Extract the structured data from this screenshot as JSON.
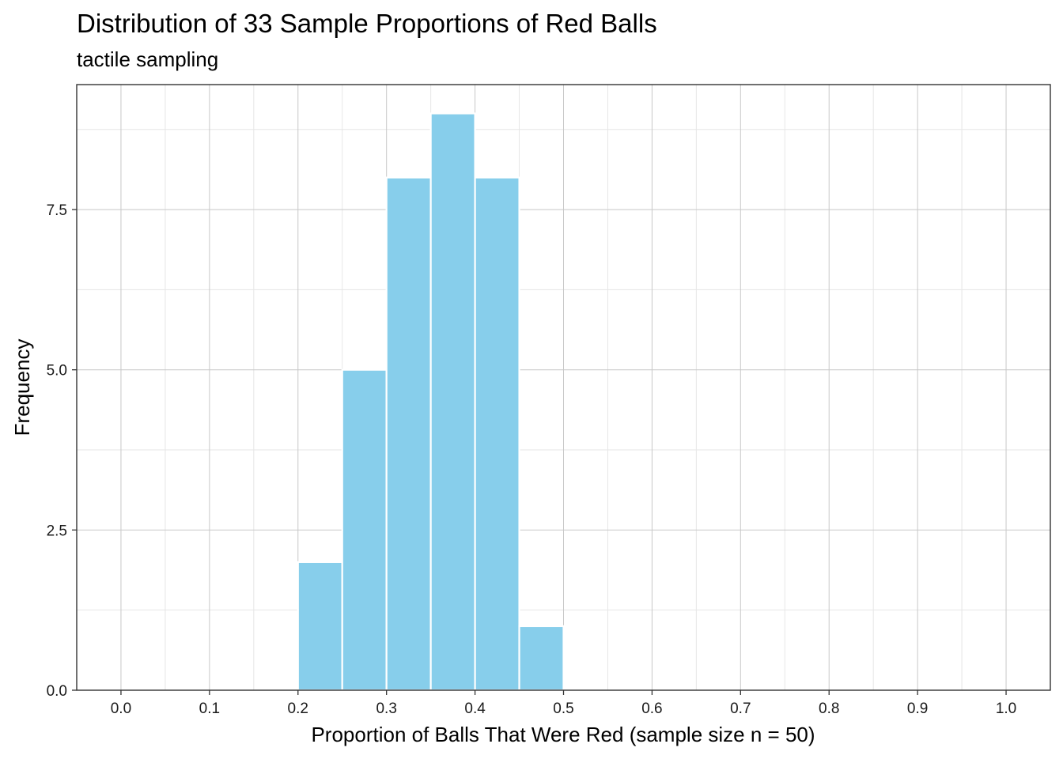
{
  "chart_data": {
    "type": "bar",
    "title": "Distribution of 33 Sample Proportions of Red Balls",
    "subtitle": "tactile sampling",
    "xlabel": "Proportion of Balls That Were Red (sample size n = 50)",
    "ylabel": "Frequency",
    "xlim": [
      -0.05,
      1.05
    ],
    "ylim": [
      0,
      9.45
    ],
    "x_ticks": [
      "0.0",
      "0.1",
      "0.2",
      "0.3",
      "0.4",
      "0.5",
      "0.6",
      "0.7",
      "0.8",
      "0.9",
      "1.0"
    ],
    "y_ticks": [
      "0.0",
      "2.5",
      "5.0",
      "7.5"
    ],
    "bin_width": 0.05,
    "bins": [
      {
        "start": 0.2,
        "end": 0.25,
        "count": 2
      },
      {
        "start": 0.25,
        "end": 0.3,
        "count": 5
      },
      {
        "start": 0.3,
        "end": 0.35,
        "count": 8
      },
      {
        "start": 0.35,
        "end": 0.4,
        "count": 9
      },
      {
        "start": 0.4,
        "end": 0.45,
        "count": 8
      },
      {
        "start": 0.45,
        "end": 0.5,
        "count": 1
      }
    ],
    "grid": true,
    "colors": {
      "fill": "#87ceeb",
      "edge": "#ffffff",
      "grid_major": "#c8c8c8",
      "grid_minor": "#e6e6e6",
      "panel_border": "#333333"
    }
  }
}
